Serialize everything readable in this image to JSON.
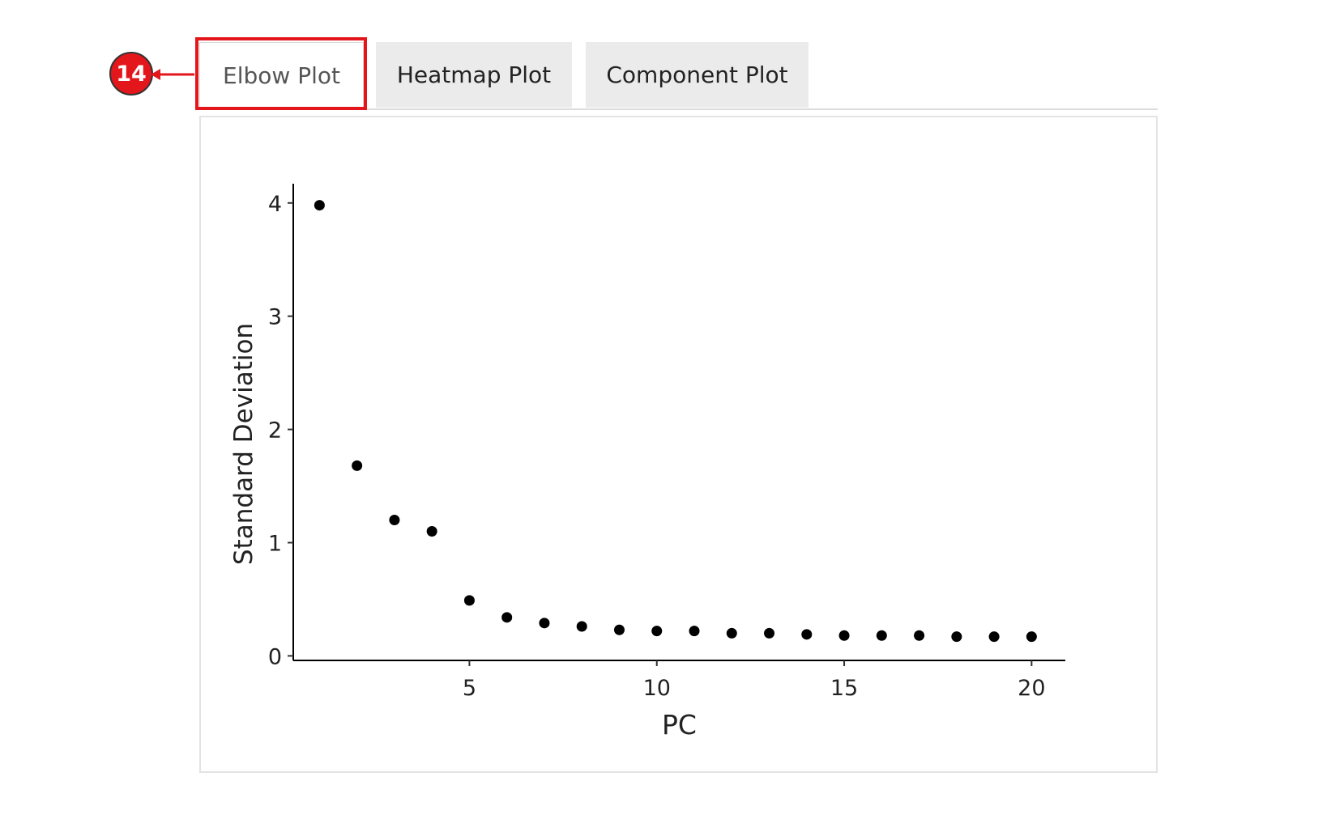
{
  "tabs": [
    {
      "label": "Elbow Plot",
      "active": true
    },
    {
      "label": "Heatmap Plot",
      "active": false
    },
    {
      "label": "Component Plot",
      "active": false
    }
  ],
  "callout": {
    "number": "14",
    "color": "#e3161b"
  },
  "chart_data": {
    "type": "scatter",
    "title": "",
    "xlabel": "PC",
    "ylabel": "Standard Deviation",
    "xlim": [
      0.3,
      20.9
    ],
    "ylim": [
      -0.04,
      4.17
    ],
    "xticks": [
      5,
      10,
      15,
      20
    ],
    "yticks": [
      0,
      1,
      2,
      3,
      4
    ],
    "grid": false,
    "point_color": "#000000",
    "x": [
      1,
      2,
      3,
      4,
      5,
      6,
      7,
      8,
      9,
      10,
      11,
      12,
      13,
      14,
      15,
      16,
      17,
      18,
      19,
      20
    ],
    "y": [
      3.98,
      1.68,
      1.2,
      1.1,
      0.49,
      0.34,
      0.29,
      0.26,
      0.23,
      0.22,
      0.22,
      0.2,
      0.2,
      0.19,
      0.18,
      0.18,
      0.18,
      0.17,
      0.17,
      0.17
    ]
  }
}
